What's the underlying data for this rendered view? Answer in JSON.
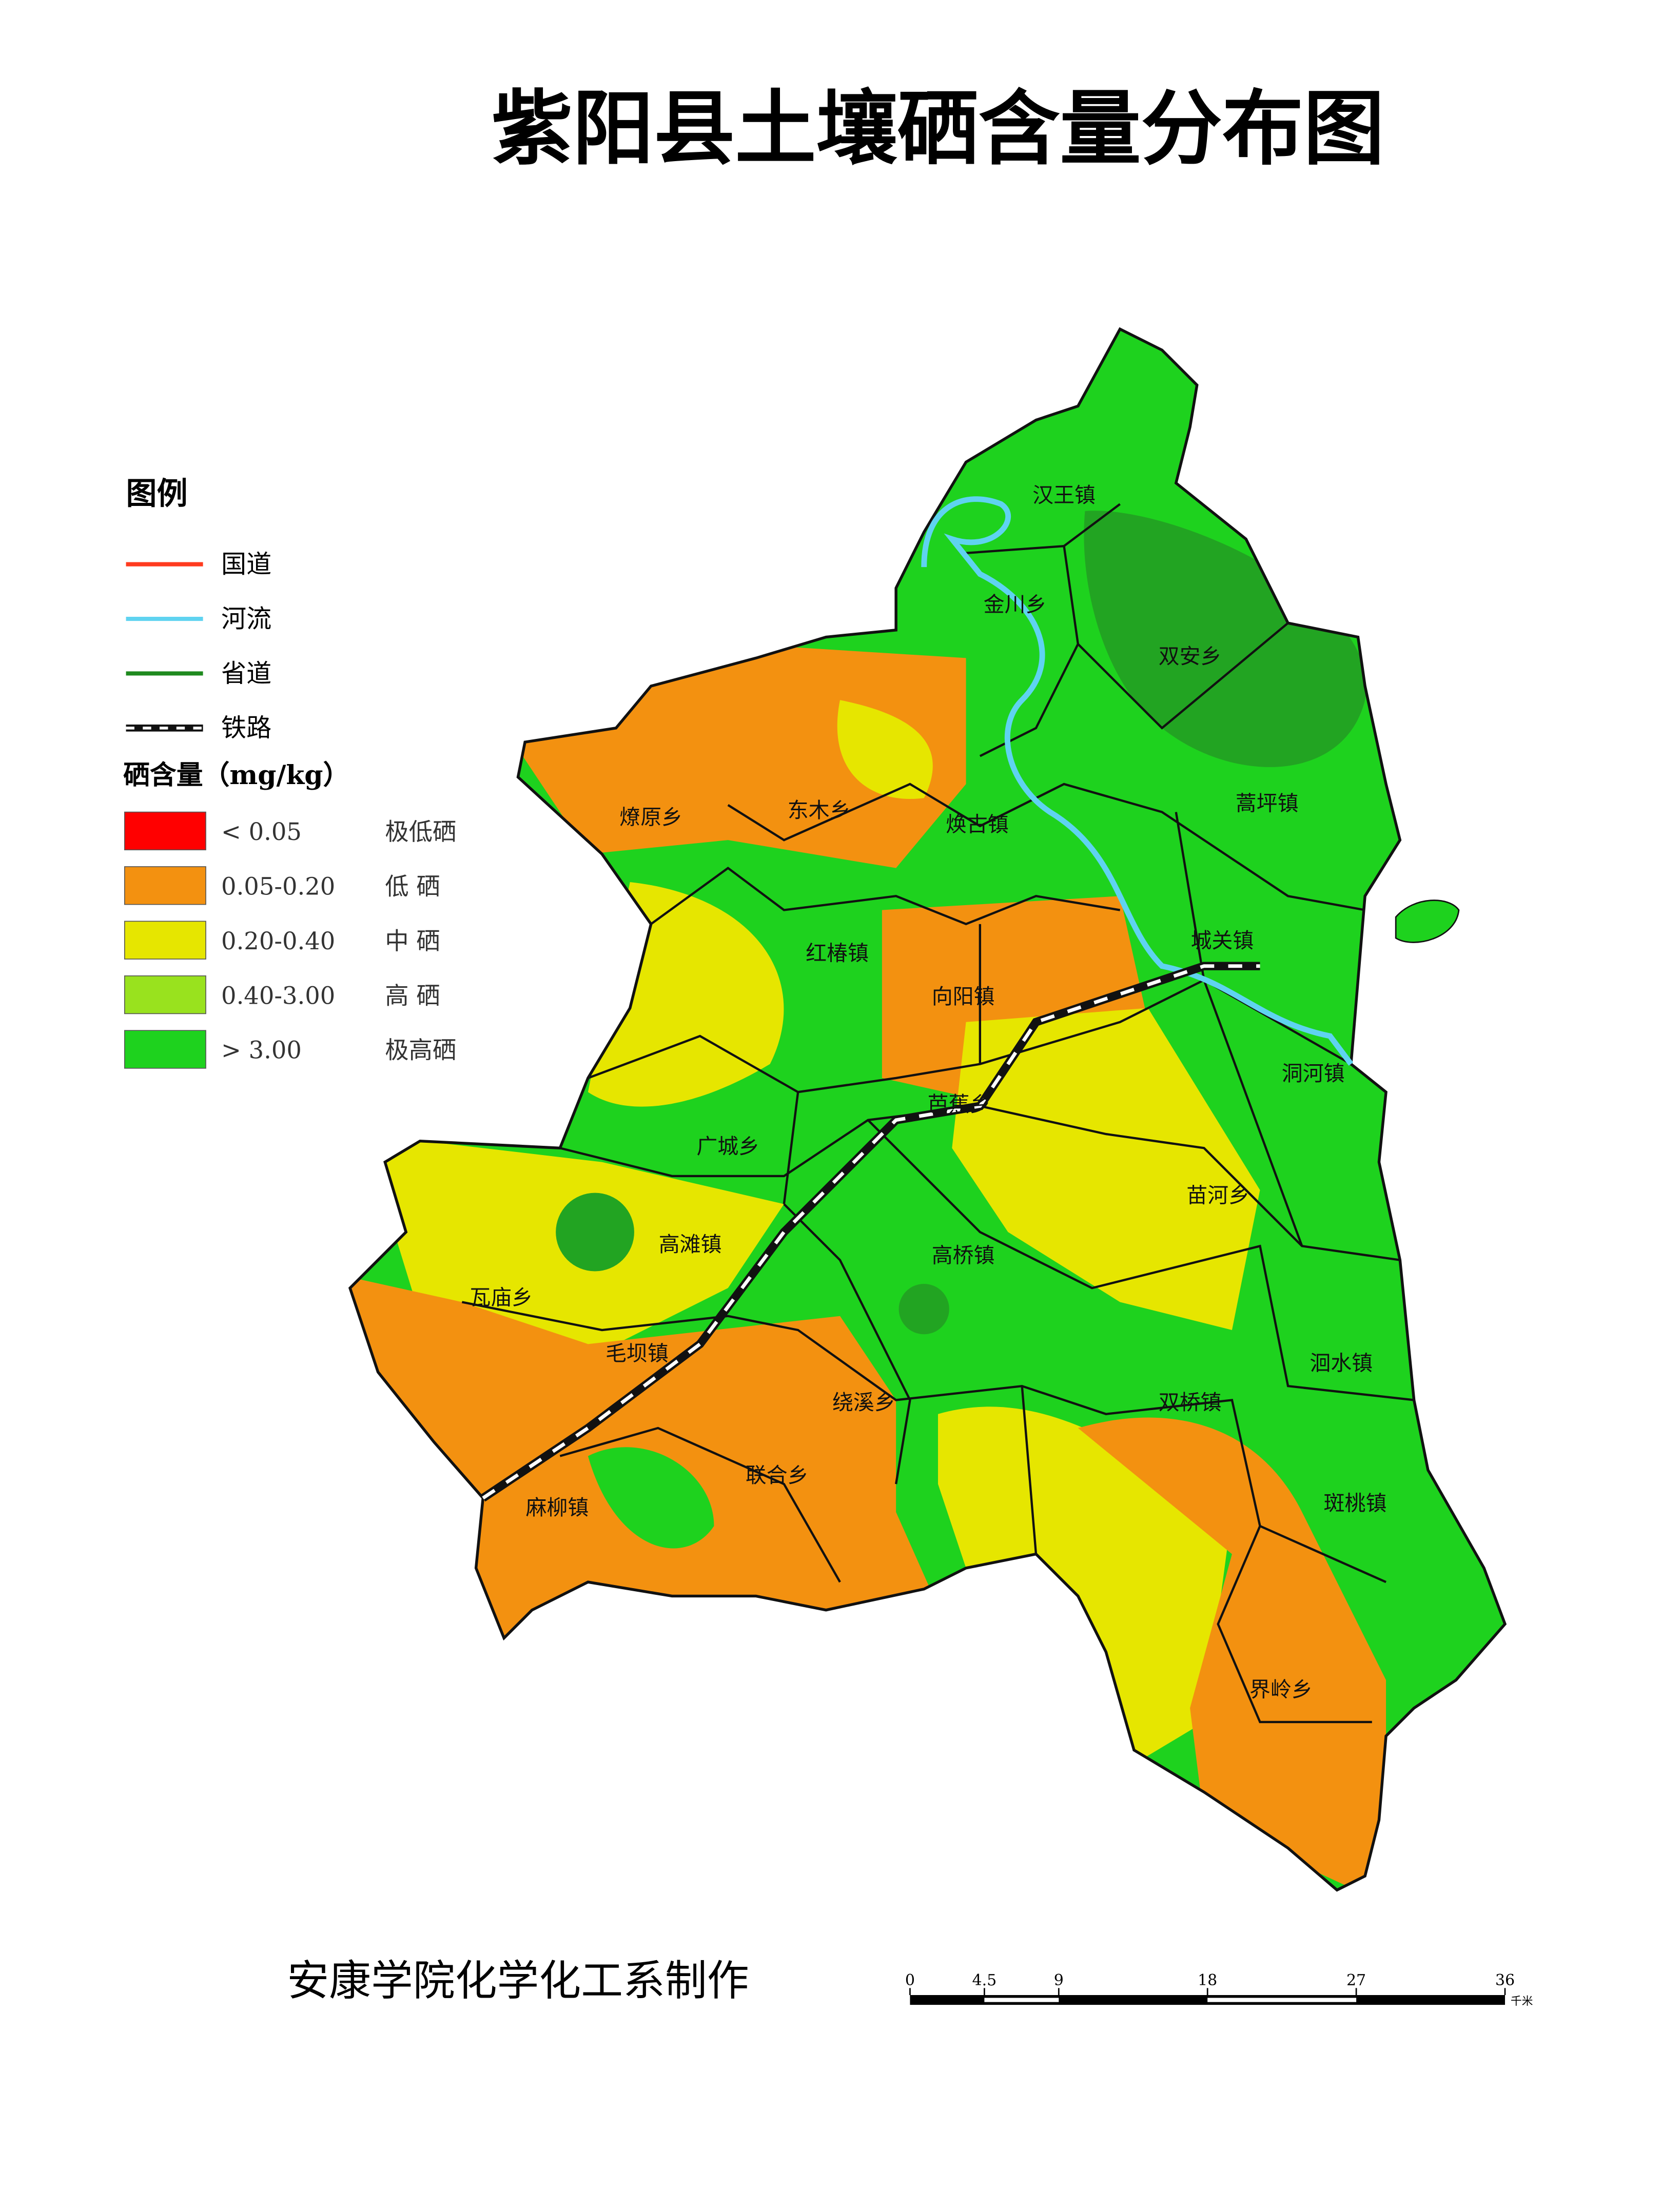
{
  "title": "紫阳县土壤硒含量分布图",
  "legend": {
    "heading": "图例",
    "lines": [
      {
        "name": "国道",
        "color": "#ff3b1f"
      },
      {
        "name": "河流",
        "color": "#5fd3f0"
      },
      {
        "name": "省道",
        "color": "#1e8a1e"
      },
      {
        "name": "铁路",
        "color": "#111111"
      }
    ],
    "class_heading": "硒含量（mg/kg）",
    "classes": [
      {
        "range": "< 0.05",
        "name": "极低硒",
        "color": "#ff0000"
      },
      {
        "range": "0.05-0.20",
        "name": "低  硒",
        "color": "#f39110"
      },
      {
        "range": "0.20-0.40",
        "name": "中  硒",
        "color": "#e6e600"
      },
      {
        "range": "0.40-3.00",
        "name": "高  硒",
        "color": "#99e21e"
      },
      {
        "range": "> 3.00",
        "name": "极高硒",
        "color": "#1ed21e"
      }
    ]
  },
  "towns": [
    "汉王镇",
    "金川乡",
    "双安乡",
    "蒿坪镇",
    "燎原乡",
    "东木乡",
    "焕古镇",
    "红椿镇",
    "城关镇",
    "向阳镇",
    "洞河镇",
    "芭蕉乡",
    "广城乡",
    "苗河乡",
    "高滩镇",
    "高桥镇",
    "瓦庙乡",
    "毛坝镇",
    "洄水镇",
    "绕溪乡",
    "双桥镇",
    "联合乡",
    "麻柳镇",
    "斑桃镇",
    "界岭乡"
  ],
  "credit": "安康学院化学化工系制作",
  "scale_bar": {
    "ticks": [
      0,
      4.5,
      9,
      18,
      27,
      36
    ],
    "unit": "千米"
  }
}
